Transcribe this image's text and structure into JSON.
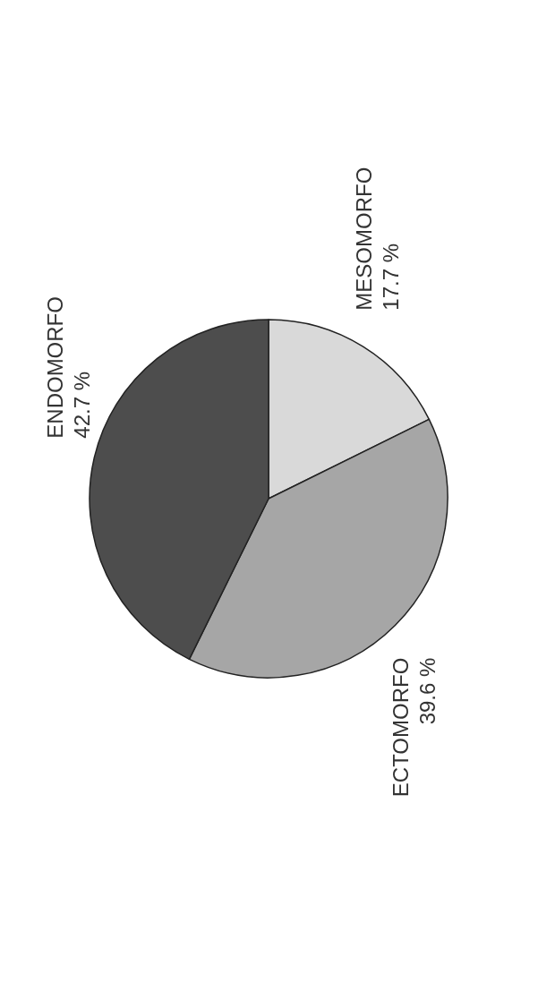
{
  "chart_data": {
    "type": "pie",
    "categories": [
      "MESOMORFO",
      "ECTOMORFO",
      "ENDOMORFO"
    ],
    "values": [
      17.7,
      39.6,
      42.7
    ],
    "colors": [
      "#d9d9d9",
      "#a6a6a6",
      "#4d4d4d"
    ],
    "value_labels": [
      "17.7 %",
      "39.6 %",
      "42.7 %"
    ],
    "legend": false
  }
}
